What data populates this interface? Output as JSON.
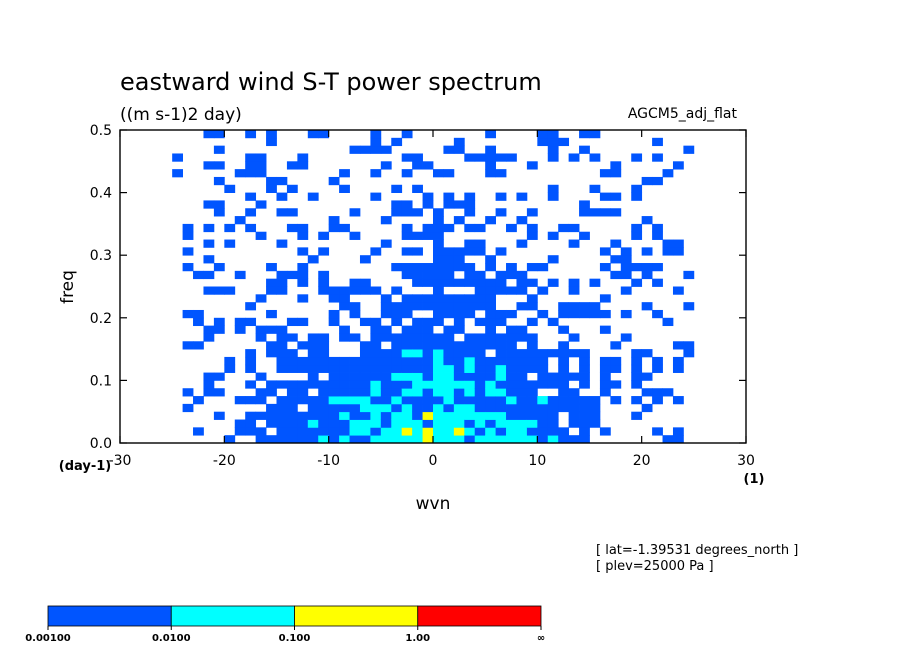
{
  "chart_data": {
    "type": "heatmap",
    "title": "eastward wind S-T power spectrum",
    "units": "((m s-1)2 day)",
    "model_label": "AGCM5_adj_flat",
    "xlabel": "wvn",
    "ylabel": "freq",
    "x_unit_label": "(1)",
    "y_unit_label": "(day-1)",
    "xlim": [
      -30,
      30
    ],
    "ylim": [
      0.0,
      0.5
    ],
    "x_ticks": [
      "-30",
      "-20",
      "-10",
      "0",
      "10",
      "20",
      "30"
    ],
    "y_ticks": [
      "0.0",
      "0.1",
      "0.2",
      "0.3",
      "0.4",
      "0.5"
    ],
    "info_lines": [
      "[ lat=-1.39531 degrees_north ]",
      "[ plev=25000 Pa ]"
    ],
    "colorbar": {
      "levels": [
        "0.00100",
        "0.0100",
        "0.100",
        "1.00",
        "∞"
      ],
      "colors": [
        "#0055ff",
        "#00ffff",
        "#ffff00",
        "#ff0000"
      ]
    },
    "background_color": "#ffffff",
    "wvn_step": 1,
    "freq_step": 0.0125
  }
}
